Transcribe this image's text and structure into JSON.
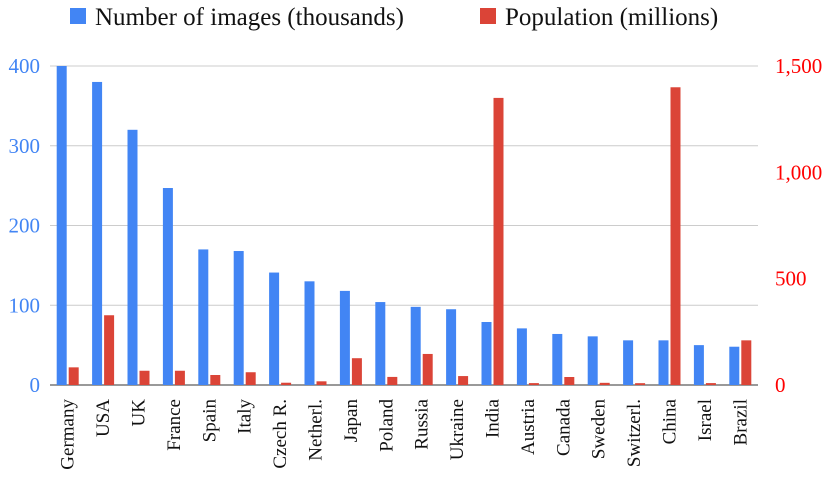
{
  "chart_data": {
    "type": "bar",
    "categories": [
      "Germany",
      "USA",
      "UK",
      "France",
      "Spain",
      "Italy",
      "Czech R.",
      "Netherl.",
      "Japan",
      "Poland",
      "Russia",
      "Ukraine",
      "India",
      "Austria",
      "Canada",
      "Sweden",
      "Switzerl.",
      "China",
      "Israel",
      "Brazil"
    ],
    "series": [
      {
        "name": "Number of images (thousands)",
        "axis": "left",
        "color": "#4285f4",
        "values": [
          400,
          380,
          320,
          247,
          170,
          168,
          141,
          130,
          118,
          104,
          98,
          95,
          79,
          71,
          64,
          61,
          56,
          56,
          50,
          48
        ]
      },
      {
        "name": "Population (millions)",
        "axis": "right",
        "color": "#db4437",
        "values": [
          83,
          328,
          67,
          67,
          47,
          60,
          10.7,
          17.3,
          126,
          38,
          146,
          42,
          1350,
          8.9,
          37.6,
          10.2,
          8.6,
          1400,
          9,
          210
        ]
      }
    ],
    "y_left": {
      "ylim": [
        0,
        400
      ],
      "ticks": [
        0,
        100,
        200,
        300,
        400
      ],
      "tick_labels": [
        "0",
        "100",
        "200",
        "300",
        "400"
      ],
      "color": "#4285f4"
    },
    "y_right": {
      "ylim": [
        0,
        1500
      ],
      "ticks": [
        0,
        500,
        1000,
        1500
      ],
      "tick_labels": [
        "0",
        "500",
        "1,000",
        "1,500"
      ],
      "color": "#ff0000"
    },
    "grid": true,
    "legend": "top"
  }
}
